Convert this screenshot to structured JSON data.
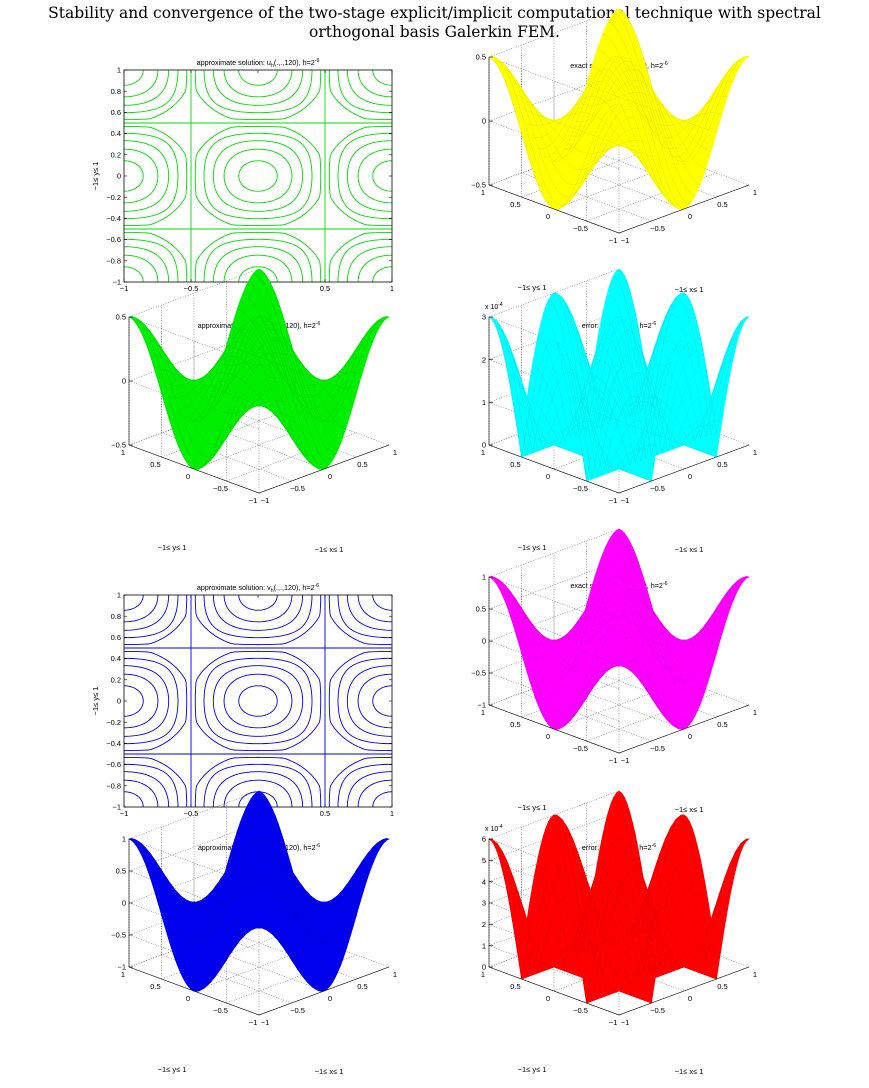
{
  "page": {
    "title_line1": "Stability and convergence of the two-stage explicit/implicit computational technique with spectral",
    "title_line2": "orthogonal basis Galerkin FEM."
  },
  "chart_data": [
    {
      "type": "contour",
      "title": "approximate solution: u_h(.,.,120), h=2^{-6}",
      "xlabel": "−1≤ x≤ 1",
      "ylabel": "−1≤ y≤ 1",
      "xlim": [
        -1,
        1
      ],
      "ylim": [
        -1,
        1
      ],
      "xticks": [
        "−1",
        "−0.5",
        "0",
        "0.5",
        "1"
      ],
      "yticks": [
        "−1",
        "−0.8",
        "−0.6",
        "−0.4",
        "−0.2",
        "0",
        "0.2",
        "0.4",
        "0.6",
        "0.8",
        "1"
      ],
      "color": "#00dd00",
      "function": "0.5*cos(pi*x)*cos(pi*y)"
    },
    {
      "type": "surface",
      "title": "exact solution: u(.,.,120), h=2^{-6}",
      "xlabel": "−1≤ x≤ 1",
      "ylabel": "−1≤ y≤ 1",
      "zlim": [
        -0.5,
        0.5
      ],
      "zticks": [
        "−0.5",
        "0",
        "0.5"
      ],
      "color": "#ffff00",
      "function": "0.5*cos(pi*x)*cos(pi*y)"
    },
    {
      "type": "surface",
      "title": "approximate solution: u_h(.,.,120), h=2^{-6}",
      "xlabel": "−1≤ x≤ 1",
      "ylabel": "−1≤ y≤ 1",
      "zlim": [
        -0.5,
        0.5
      ],
      "zticks": [
        "−0.5",
        "0",
        "0.5"
      ],
      "color": "#00ee00",
      "function": "0.5*cos(pi*x)*cos(pi*y)"
    },
    {
      "type": "surface",
      "title": "error: e_uh(.,.,120), h=2^{-6}",
      "xlabel": "−1≤ x≤ 1",
      "ylabel": "−1≤ y≤ 1",
      "zlim": [
        0,
        3
      ],
      "zticks": [
        "0",
        "1",
        "2",
        "3"
      ],
      "zscale": "x 10^{-4}",
      "color": "#00ffff",
      "function": "3*|cos(pi*x)*cos(pi*y)|"
    },
    {
      "type": "contour",
      "title": "approximate solution: v_h(.,.,120), h=2^{-6}",
      "xlabel": "−1≤ x≤ 1",
      "ylabel": "−1≤ y≤ 1",
      "xlim": [
        -1,
        1
      ],
      "ylim": [
        -1,
        1
      ],
      "xticks": [
        "−1",
        "−0.5",
        "0",
        "0.5",
        "1"
      ],
      "yticks": [
        "−1",
        "−0.8",
        "−0.6",
        "−0.4",
        "−0.2",
        "0",
        "0.2",
        "0.4",
        "0.6",
        "0.8",
        "1"
      ],
      "color": "#0000dd",
      "function": "cos(pi*x)*cos(pi*y)"
    },
    {
      "type": "surface",
      "title": "exact solution: v(.,.,120), h=2^{-6}",
      "xlabel": "−1≤ x≤ 1",
      "ylabel": "−1≤ y≤ 1",
      "zlim": [
        -1,
        1
      ],
      "zticks": [
        "−1",
        "−0.5",
        "0",
        "0.5",
        "1"
      ],
      "color": "#ff00ff",
      "function": "cos(pi*x)*cos(pi*y)"
    },
    {
      "type": "surface",
      "title": "approximate solution: v_h(.,.,120), h=2^{-6}",
      "xlabel": "−1≤ x≤ 1",
      "ylabel": "−1≤ y≤ 1",
      "zlim": [
        -1,
        1
      ],
      "zticks": [
        "−1",
        "−0.5",
        "0",
        "0.5",
        "1"
      ],
      "color": "#0000ee",
      "function": "cos(pi*x)*cos(pi*y)"
    },
    {
      "type": "surface",
      "title": "error: e_vh(.,.,120), h=2^{-6}",
      "xlabel": "−1≤ x≤ 1",
      "ylabel": "−1≤ y≤ 1",
      "zlim": [
        0,
        6
      ],
      "zticks": [
        "0",
        "1",
        "2",
        "3",
        "4",
        "5",
        "6"
      ],
      "zscale": "x 10^{-4}",
      "color": "#ff0000",
      "function": "6*|cos(pi*x)*cos(pi*y)|"
    }
  ],
  "surface_axis": {
    "x_ticks": [
      "−1",
      "−0.5",
      "0",
      "0.5",
      "1"
    ],
    "y_ticks": [
      "1",
      "0.5",
      "0",
      "−0.5",
      "−1"
    ]
  }
}
